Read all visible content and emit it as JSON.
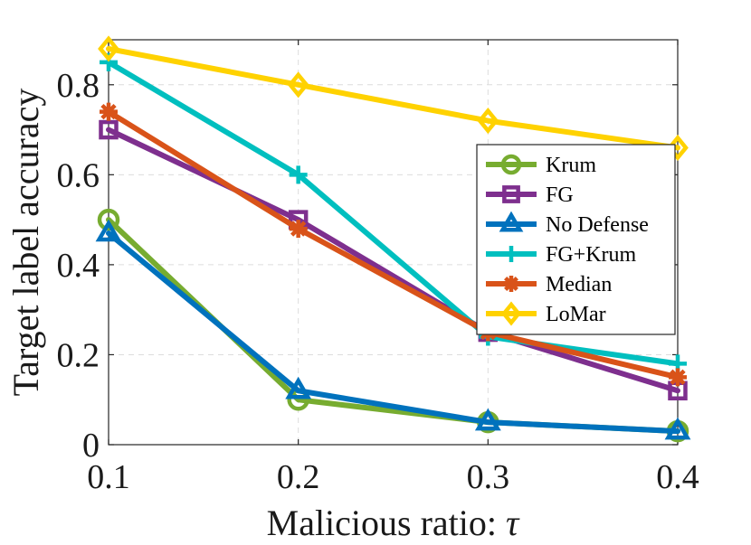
{
  "chart_data": {
    "type": "line",
    "title": "",
    "xlabel": "Malicious ratio: ",
    "xlabel_symbol": "τ",
    "ylabel": "Target label accuracy",
    "x": [
      0.1,
      0.2,
      0.3,
      0.4
    ],
    "x_tick_labels": [
      "0.1",
      "0.2",
      "0.3",
      "0.4"
    ],
    "y_ticks": [
      0,
      0.2,
      0.4,
      0.6,
      0.8
    ],
    "y_tick_labels": [
      "0",
      "0.2",
      "0.4",
      "0.6",
      "0.8"
    ],
    "xlim": [
      0.1,
      0.4
    ],
    "ylim": [
      0,
      0.9
    ],
    "grid": true,
    "legend_position": "right",
    "series": [
      {
        "name": "Krum",
        "values": [
          0.5,
          0.1,
          0.05,
          0.03
        ],
        "color": "#77AC30",
        "marker": "circle"
      },
      {
        "name": "FG",
        "values": [
          0.7,
          0.5,
          0.25,
          0.12
        ],
        "color": "#7E2F8E",
        "marker": "square"
      },
      {
        "name": "No Defense",
        "values": [
          0.47,
          0.12,
          0.05,
          0.03
        ],
        "color": "#0072BD",
        "marker": "triangle"
      },
      {
        "name": "FG+Krum",
        "values": [
          0.85,
          0.6,
          0.24,
          0.18
        ],
        "color": "#00BFBF",
        "marker": "plus"
      },
      {
        "name": "Median",
        "values": [
          0.74,
          0.48,
          0.25,
          0.15
        ],
        "color": "#D95319",
        "marker": "asterisk"
      },
      {
        "name": "LoMar",
        "values": [
          0.88,
          0.8,
          0.72,
          0.66
        ],
        "color": "#FFD200",
        "marker": "diamond"
      }
    ]
  }
}
